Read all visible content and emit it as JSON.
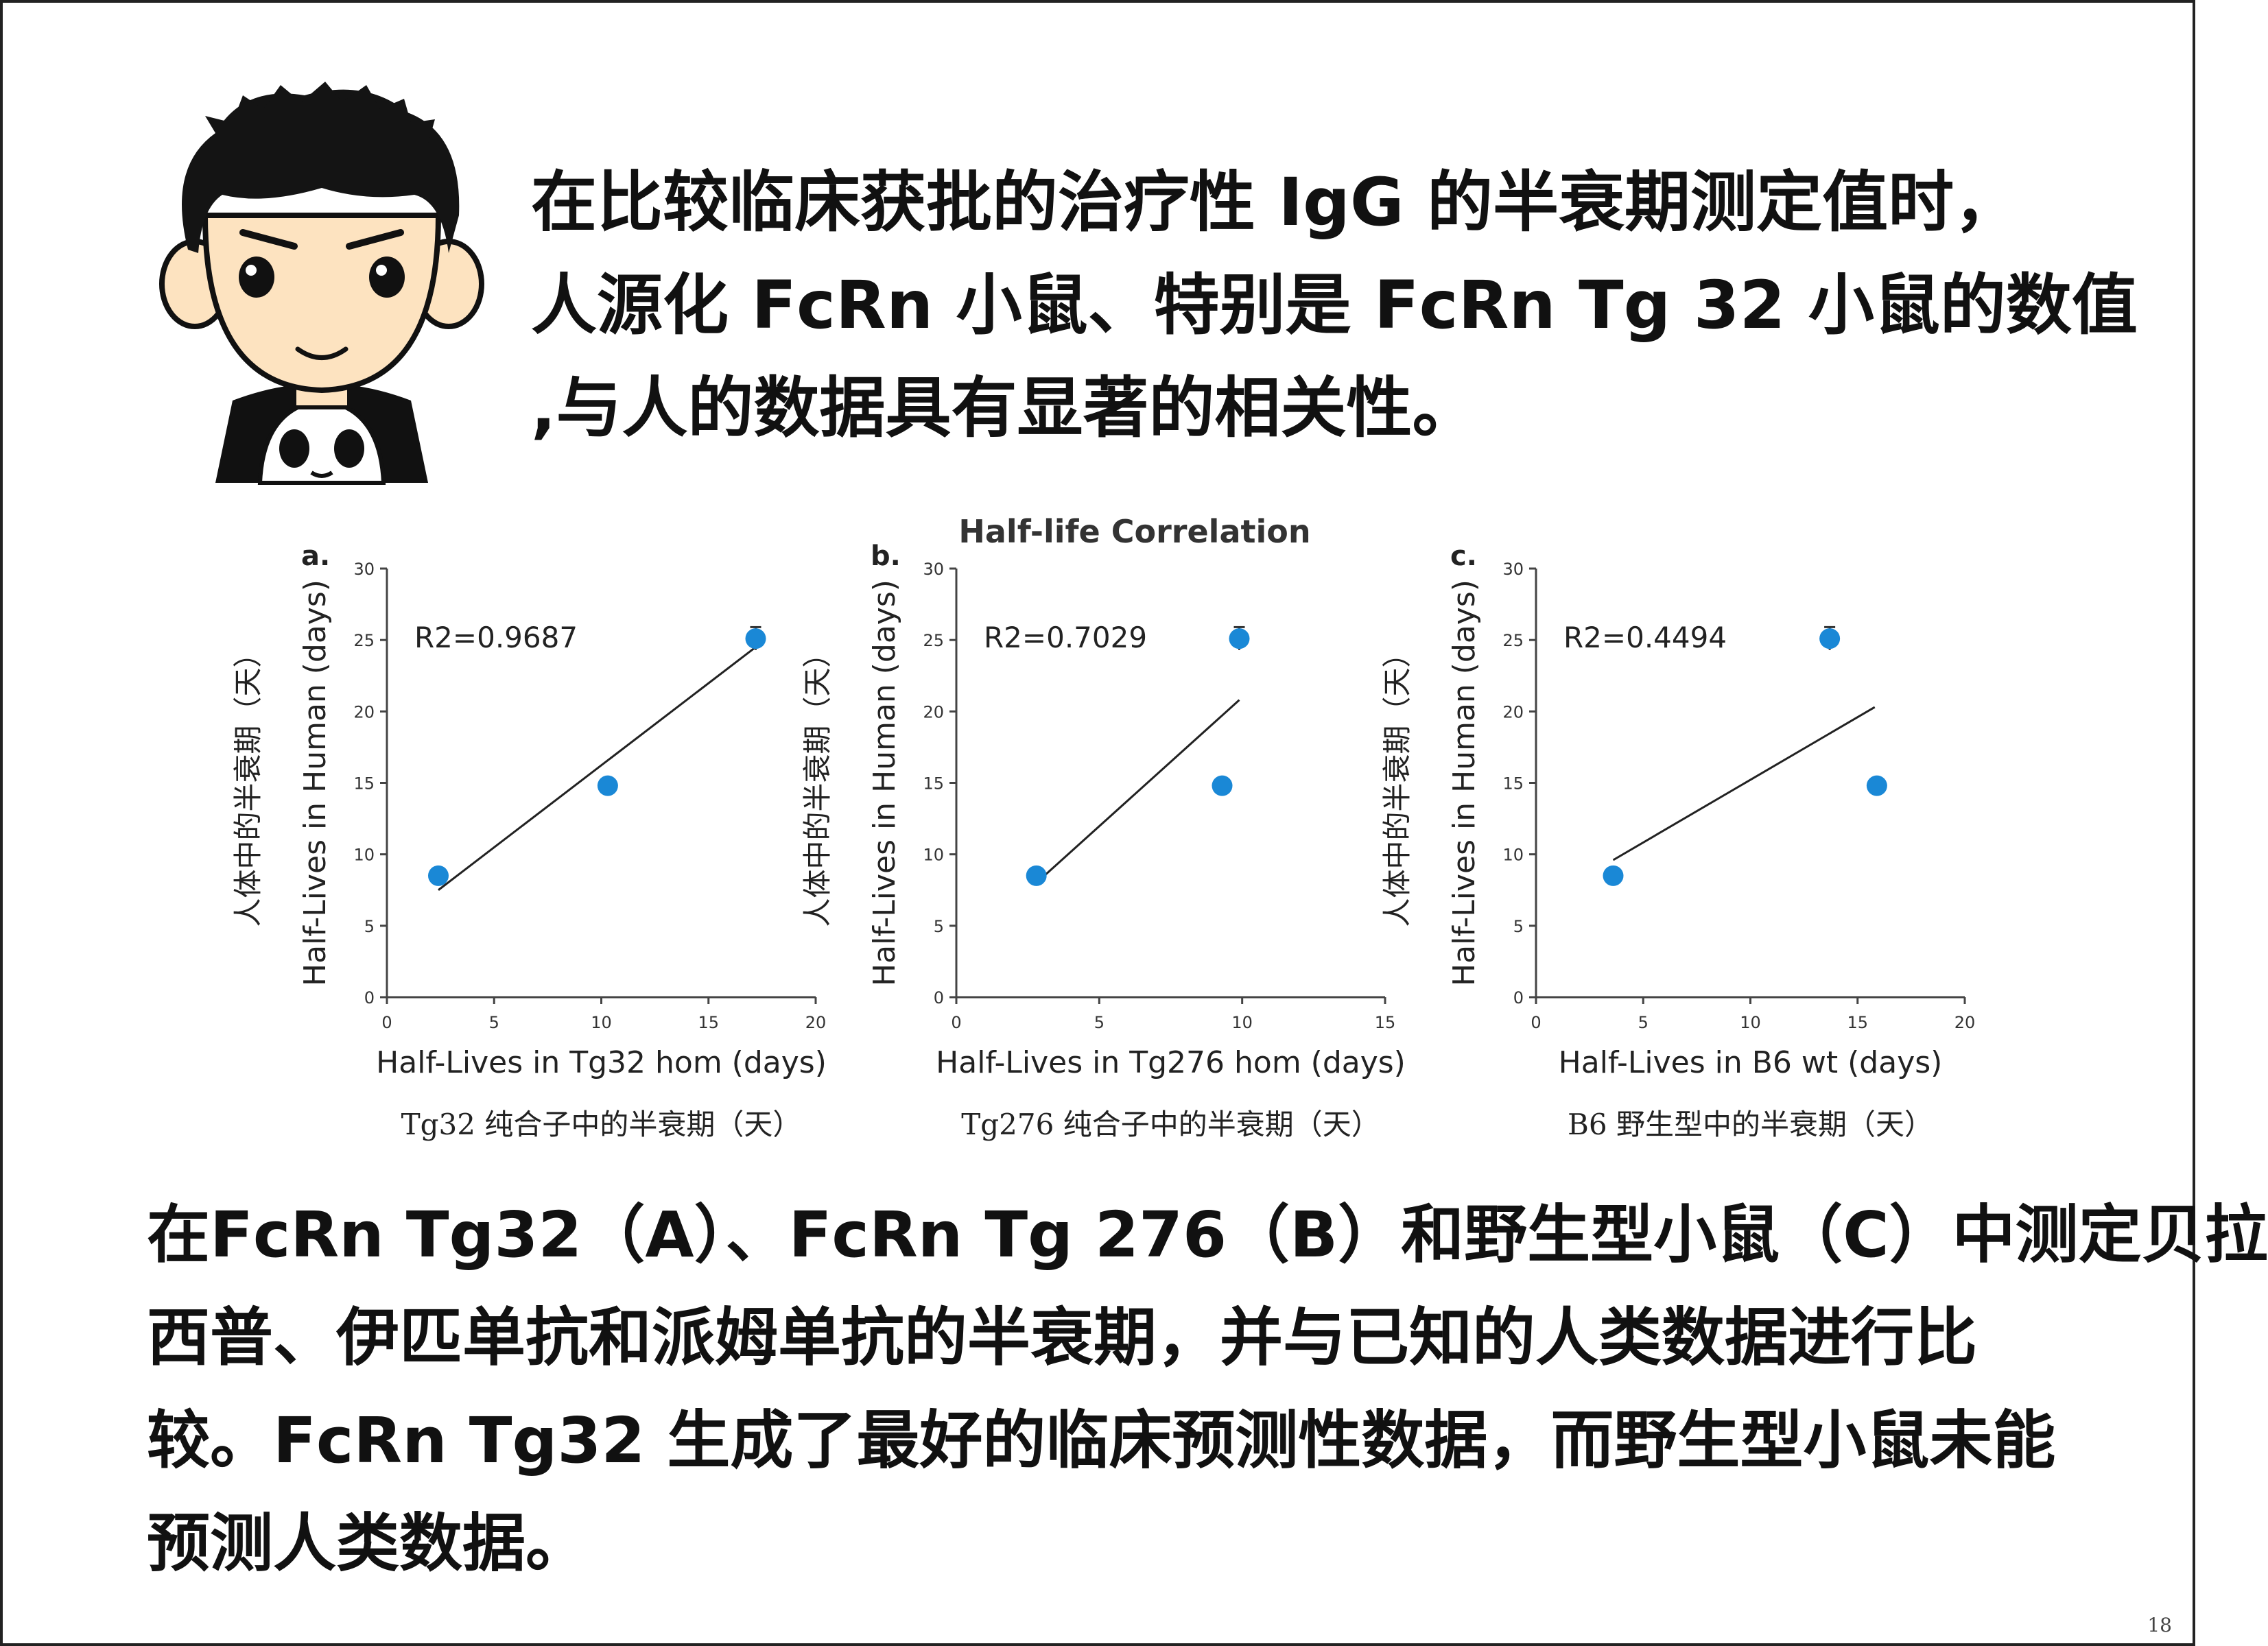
{
  "top_text": [
    "在比较临床获批的治疗性 IgG 的半衰期测定值时，",
    "人源化 FcRn 小鼠、特别是 FcRn Tg 32 小鼠的数值",
    ",与人的数据具有显著的相关性。"
  ],
  "figure_title": "Half-life Correlation",
  "colors": {
    "point": "#1a88d6",
    "line": "#222222",
    "axis": "#444444",
    "text": "#111111"
  },
  "chart_data": [
    {
      "type": "scatter",
      "panel_label": "a.",
      "title": "Half-life Correlation",
      "r2_label": "R2=0.9687",
      "xlabel": "Half-Lives in Tg32 hom (days)",
      "xlabel_cn": "Tg32 纯合子中的半衰期（天）",
      "ylabel": "Half-Lives in Human (days)",
      "ylabel_cn": "人体中的半衰期（天）",
      "xlim": [
        0,
        20
      ],
      "ylim": [
        0,
        30
      ],
      "xticks": [
        0,
        5,
        10,
        15,
        20
      ],
      "yticks": [
        0,
        5,
        10,
        15,
        20,
        25,
        30
      ],
      "points": [
        {
          "x": 2.4,
          "y": 8.5
        },
        {
          "x": 10.3,
          "y": 14.8
        },
        {
          "x": 17.2,
          "y": 25.1,
          "err": 0.8
        }
      ],
      "fit_line": [
        [
          2.4,
          7.5
        ],
        [
          17.2,
          24.5
        ]
      ],
      "grid": false
    },
    {
      "type": "scatter",
      "panel_label": "b.",
      "r2_label": "R2=0.7029",
      "xlabel": "Half-Lives in Tg276 hom (days)",
      "xlabel_cn": "Tg276 纯合子中的半衰期（天）",
      "ylabel": "Half-Lives in Human (days)",
      "ylabel_cn": "人体中的半衰期（天）",
      "xlim": [
        0,
        15
      ],
      "ylim": [
        0,
        30
      ],
      "xticks": [
        0,
        5,
        10,
        15
      ],
      "yticks": [
        0,
        5,
        10,
        15,
        20,
        25,
        30
      ],
      "points": [
        {
          "x": 2.8,
          "y": 8.5
        },
        {
          "x": 9.3,
          "y": 14.8
        },
        {
          "x": 9.9,
          "y": 25.1,
          "err": 0.8
        }
      ],
      "fit_line": [
        [
          2.8,
          8.0
        ],
        [
          9.9,
          20.8
        ]
      ],
      "grid": false
    },
    {
      "type": "scatter",
      "panel_label": "c.",
      "r2_label": "R2=0.4494",
      "xlabel": "Half-Lives in B6 wt (days)",
      "xlabel_cn": "B6 野生型中的半衰期（天）",
      "ylabel": "Half-Lives in Human (days)",
      "ylabel_cn": "人体中的半衰期（天）",
      "xlim": [
        0,
        20
      ],
      "ylim": [
        0,
        30
      ],
      "xticks": [
        0,
        5,
        10,
        15,
        20
      ],
      "yticks": [
        0,
        5,
        10,
        15,
        20,
        25,
        30
      ],
      "points": [
        {
          "x": 3.6,
          "y": 8.5
        },
        {
          "x": 15.9,
          "y": 14.8
        },
        {
          "x": 13.7,
          "y": 25.1,
          "err": 0.8
        }
      ],
      "fit_line": [
        [
          3.6,
          9.6
        ],
        [
          15.8,
          20.3
        ]
      ],
      "grid": false
    }
  ],
  "bottom_text": [
    "在FcRn Tg32（A）、FcRn Tg 276（B）和野生型小鼠（C）中测定贝拉",
    "西普、伊匹单抗和派姆单抗的半衰期，并与已知的人类数据进行比",
    "较。FcRn Tg32 生成了最好的临床预测性数据，而野生型小鼠未能",
    "预测人类数据。"
  ],
  "page_number": "18"
}
